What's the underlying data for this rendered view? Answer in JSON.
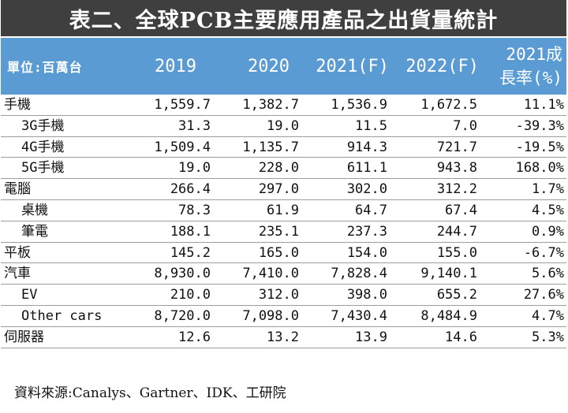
{
  "title": "表二、全球PCB主要應用產品之出貨量統計",
  "header": {
    "unit_label": "單位:百萬台",
    "years": [
      "2019",
      "2020",
      "2021(F)",
      "2022(F)"
    ],
    "growth_line1": "2021成",
    "growth_line2": "長率(%)"
  },
  "rows": [
    {
      "label": "手機",
      "sub": false,
      "values": [
        "1,559.7",
        "1,382.7",
        "1,536.9",
        "1,672.5"
      ],
      "growth": "11.1%"
    },
    {
      "label": "3G手機",
      "sub": true,
      "values": [
        "31.3",
        "19.0",
        "11.5",
        "7.0"
      ],
      "growth": "-39.3%"
    },
    {
      "label": "4G手機",
      "sub": true,
      "values": [
        "1,509.4",
        "1,135.7",
        "914.3",
        "721.7"
      ],
      "growth": "-19.5%"
    },
    {
      "label": "5G手機",
      "sub": true,
      "values": [
        "19.0",
        "228.0",
        "611.1",
        "943.8"
      ],
      "growth": "168.0%"
    },
    {
      "label": "電腦",
      "sub": false,
      "values": [
        "266.4",
        "297.0",
        "302.0",
        "312.2"
      ],
      "growth": "1.7%"
    },
    {
      "label": "桌機",
      "sub": true,
      "values": [
        "78.3",
        "61.9",
        "64.7",
        "67.4"
      ],
      "growth": "4.5%"
    },
    {
      "label": "筆電",
      "sub": true,
      "values": [
        "188.1",
        "235.1",
        "237.3",
        "244.7"
      ],
      "growth": "0.9%"
    },
    {
      "label": "平板",
      "sub": false,
      "values": [
        "145.2",
        "165.0",
        "154.0",
        "155.0"
      ],
      "growth": "-6.7%"
    },
    {
      "label": "汽車",
      "sub": false,
      "values": [
        "8,930.0",
        "7,410.0",
        "7,828.4",
        "9,140.1"
      ],
      "growth": "5.6%"
    },
    {
      "label": "EV",
      "sub": true,
      "values": [
        "210.0",
        "312.0",
        "398.0",
        "655.2"
      ],
      "growth": "27.6%"
    },
    {
      "label": "Other cars",
      "sub": true,
      "values": [
        "8,720.0",
        "7,098.0",
        "7,430.4",
        "8,484.9"
      ],
      "growth": "4.7%"
    },
    {
      "label": "伺服器",
      "sub": false,
      "values": [
        "12.6",
        "13.2",
        "13.9",
        "14.6"
      ],
      "growth": "5.3%"
    }
  ],
  "source": "資料來源:Canalys、Gartner、IDK、工研院",
  "colors": {
    "title_bg": "#3f3f3f",
    "header_bg": "#5a9bd4",
    "row_line": "#9c9c9c"
  }
}
